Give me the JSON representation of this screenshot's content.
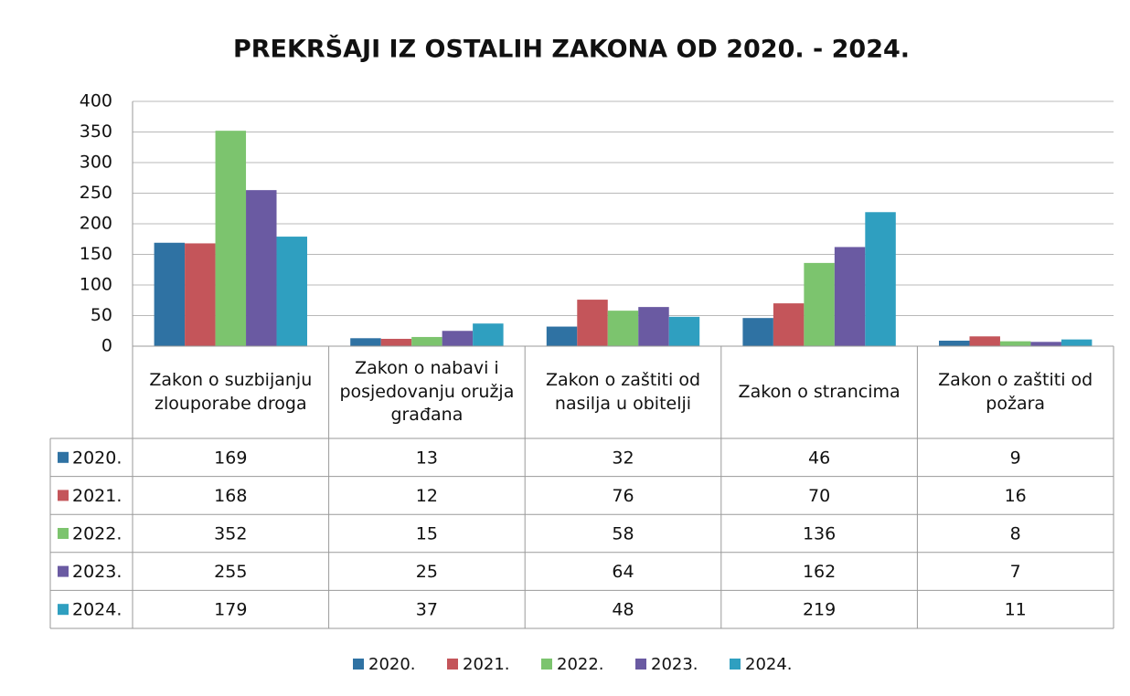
{
  "chart_data": {
    "type": "bar",
    "title": "PREKRŠAJI IZ OSTALIH ZAKONA OD 2020. - 2024.",
    "categories": [
      "Zakon o suzbijanju zlouporabe droga",
      "Zakon o nabavi i posjedovanju oružja građana",
      "Zakon o zaštiti od nasilja u obitelji",
      "Zakon o strancima",
      "Zakon o zaštiti od požara"
    ],
    "series": [
      {
        "name": "2020.",
        "color": "#2f72a3",
        "values": [
          169,
          13,
          32,
          46,
          9
        ]
      },
      {
        "name": "2021.",
        "color": "#c4555a",
        "values": [
          168,
          12,
          76,
          70,
          16
        ]
      },
      {
        "name": "2022.",
        "color": "#7cc46e",
        "values": [
          352,
          15,
          58,
          136,
          8
        ]
      },
      {
        "name": "2023.",
        "color": "#6a5aa2",
        "values": [
          255,
          25,
          64,
          162,
          7
        ]
      },
      {
        "name": "2024.",
        "color": "#2f9fc0",
        "values": [
          179,
          37,
          48,
          219,
          11
        ]
      }
    ],
    "ylim": [
      0,
      400
    ],
    "yticks": [
      0,
      50,
      100,
      150,
      200,
      250,
      300,
      350,
      400
    ],
    "grid": true
  }
}
